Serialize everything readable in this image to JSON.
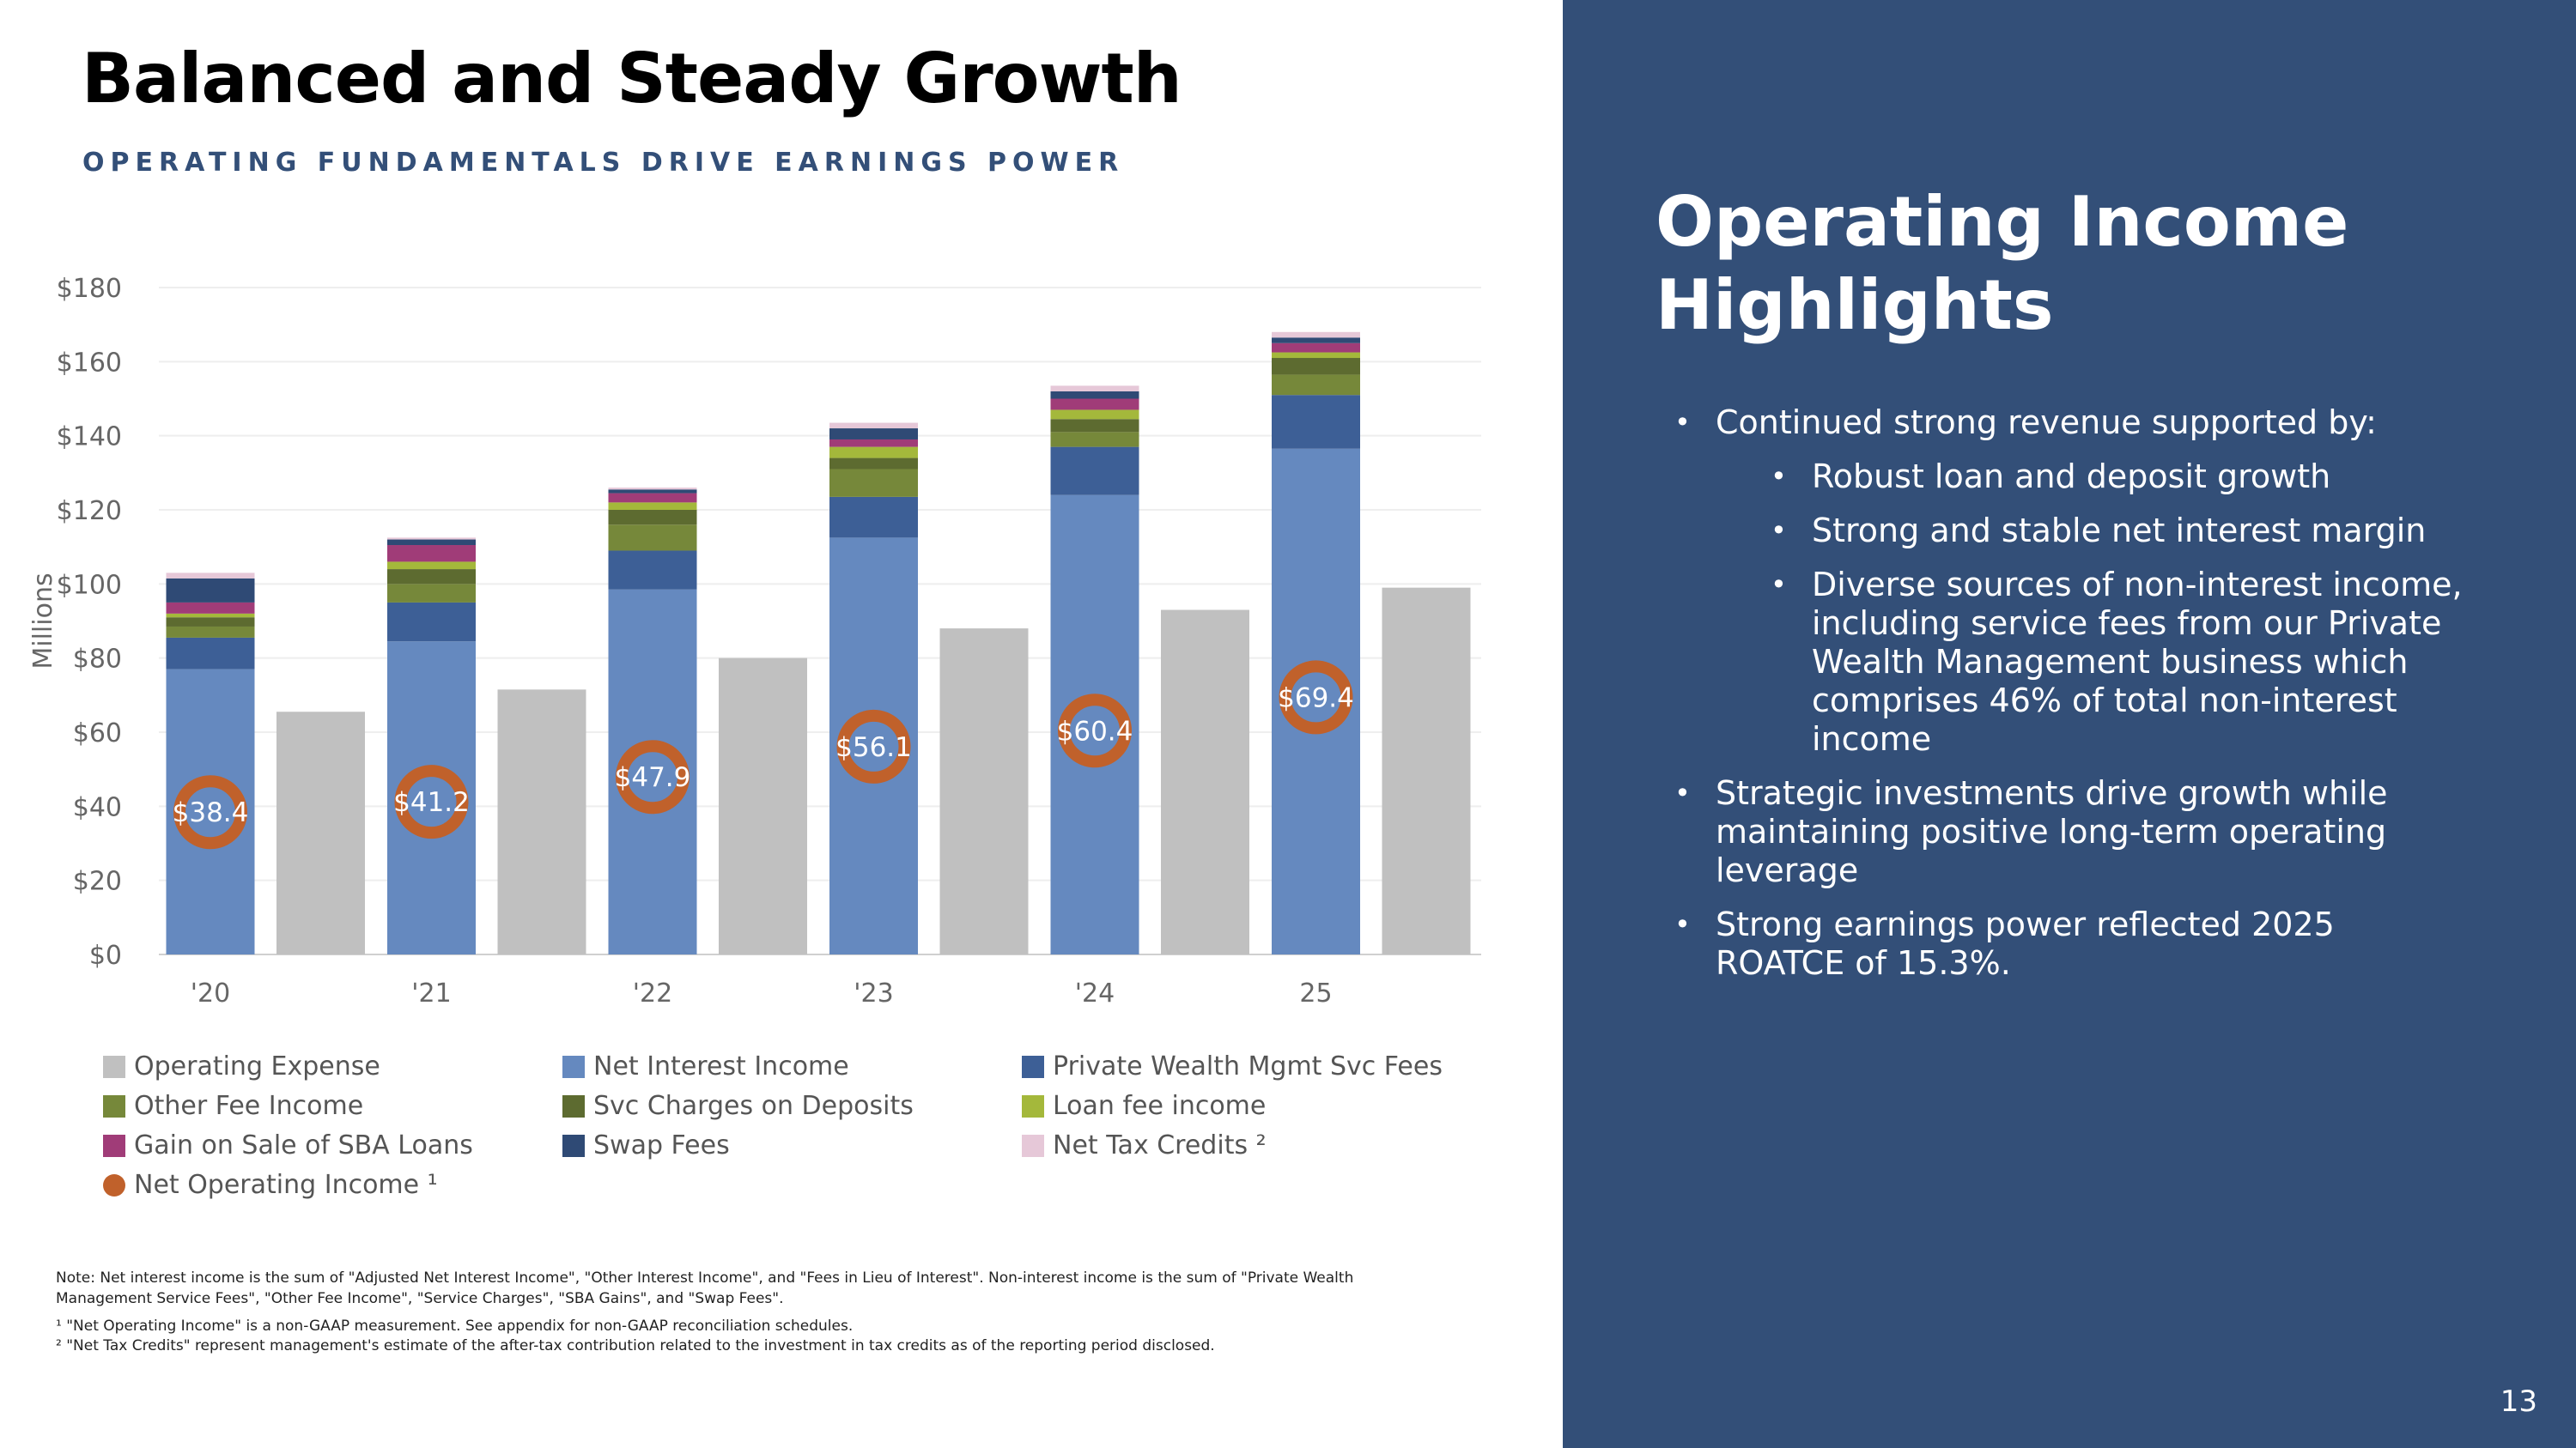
{
  "slide": {
    "title": "Balanced and Steady Growth",
    "subtitle": "OPERATING FUNDAMENTALS DRIVE EARNINGS POWER",
    "page_number": "13"
  },
  "sidebar": {
    "title": "Operating Income Highlights",
    "bullets": [
      {
        "text": "Continued strong revenue supported by:",
        "level": 1
      },
      {
        "text": "Robust loan and deposit growth",
        "level": 2
      },
      {
        "text": "Strong and stable net interest margin",
        "level": 2
      },
      {
        "text": "Diverse sources of non-interest income, including  service fees from our Private Wealth Management business which comprises 46% of total non-interest income",
        "level": 2
      },
      {
        "text": "Strategic investments drive growth while maintaining positive long-term operating leverage",
        "level": 1
      },
      {
        "text": "Strong earnings power reflected 2025 ROATCE of 15.3%.",
        "level": 1
      }
    ]
  },
  "notes": {
    "line1": "Note: Net interest income is the sum of \"Adjusted Net Interest Income\", \"Other Interest Income\", and \"Fees in Lieu of Interest\". Non-interest income is the sum of \"Private Wealth Management Service Fees\", \"Other Fee Income\", \"Service Charges\", \"SBA Gains\", and \"Swap Fees\".",
    "line2": "¹ \"Net Operating Income\" is a non-GAAP measurement. See appendix for non-GAAP reconciliation schedules.",
    "line3": "² \"Net Tax Credits\" represent management's estimate of the after-tax contribution related to the investment in tax credits as of the reporting period disclosed."
  },
  "chart_data": {
    "type": "bar",
    "ylabel": "Millions",
    "ylim": [
      0,
      180
    ],
    "yticks": [
      "$0",
      "$20",
      "$40",
      "$60",
      "$80",
      "$100",
      "$120",
      "$140",
      "$160",
      "$180"
    ],
    "ytick_values": [
      0,
      20,
      40,
      60,
      80,
      100,
      120,
      140,
      160,
      180
    ],
    "categories": [
      "'20",
      "'21",
      "'22",
      "'23",
      "'24",
      "25"
    ],
    "grid": true,
    "stacked_series": [
      {
        "name": "Net Interest Income",
        "color": "#6589bf",
        "values": [
          77,
          84.5,
          98.5,
          112.5,
          124,
          136.5
        ]
      },
      {
        "name": "Private Wealth Mgmt Svc Fees",
        "color": "#3d5f96",
        "values": [
          8.5,
          10.5,
          10.5,
          11,
          13,
          14.5
        ]
      },
      {
        "name": "Other Fee Income",
        "color": "#76883a",
        "values": [
          3,
          5,
          7,
          7.5,
          4,
          5.5
        ]
      },
      {
        "name": "Svc Charges on Deposits",
        "color": "#5d6b30",
        "values": [
          2.5,
          4,
          4,
          3,
          3.5,
          4.5
        ]
      },
      {
        "name": "Loan fee income",
        "color": "#a4b83b",
        "values": [
          1,
          2,
          2,
          3,
          2.5,
          1.5
        ]
      },
      {
        "name": "Gain on Sale of SBA Loans",
        "color": "#a03c78",
        "values": [
          3,
          4.5,
          2.5,
          2,
          3,
          2.5
        ]
      },
      {
        "name": "Swap Fees",
        "color": "#2f4a75",
        "values": [
          6.5,
          1.5,
          1,
          3,
          2,
          1.5
        ]
      },
      {
        "name": "Net Tax Credits ²",
        "color": "#e6c8d8",
        "values": [
          1.5,
          0.5,
          0.5,
          1.5,
          1.5,
          1.5
        ]
      }
    ],
    "operating_expense": {
      "name": "Operating Expense",
      "color": "#c0c0c0",
      "values": [
        65.5,
        71.5,
        80,
        88,
        93,
        99
      ]
    },
    "net_operating_income": {
      "name": "Net Operating Income ¹",
      "color": "#c0612b",
      "values": [
        38.4,
        41.2,
        47.9,
        56.1,
        60.4,
        69.4
      ],
      "labels": [
        "$38.4",
        "$41.2",
        "$47.9",
        "$56.1",
        "$60.4",
        "$69.4"
      ]
    },
    "legend": [
      {
        "label": "Operating Expense",
        "color": "#c0c0c0",
        "shape": "square"
      },
      {
        "label": "Net Interest Income",
        "color": "#6589bf",
        "shape": "square"
      },
      {
        "label": "Private Wealth Mgmt Svc Fees",
        "color": "#3d5f96",
        "shape": "square"
      },
      {
        "label": "Other Fee Income",
        "color": "#76883a",
        "shape": "square"
      },
      {
        "label": "Svc Charges on Deposits",
        "color": "#5d6b30",
        "shape": "square"
      },
      {
        "label": "Loan fee income",
        "color": "#a4b83b",
        "shape": "square"
      },
      {
        "label": "Gain on Sale of SBA Loans",
        "color": "#a03c78",
        "shape": "square"
      },
      {
        "label": "Swap Fees",
        "color": "#2f4a75",
        "shape": "square"
      },
      {
        "label": "Net Tax Credits ²",
        "color": "#e6c8d8",
        "shape": "square"
      },
      {
        "label": "Net Operating Income ¹",
        "color": "#c0612b",
        "shape": "circle"
      }
    ]
  }
}
